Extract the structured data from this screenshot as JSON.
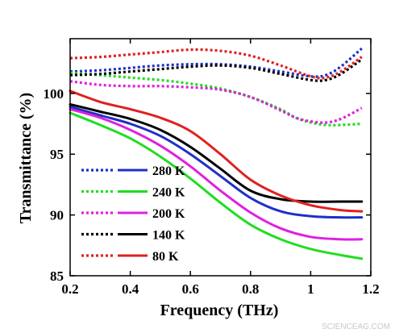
{
  "chart_data": {
    "type": "line",
    "title": "",
    "xlabel": "Frequency (THz)",
    "ylabel": "Transmittance (%)",
    "xlim": [
      0.2,
      1.2
    ],
    "ylim": [
      85,
      104.5
    ],
    "xticks": [
      0.2,
      0.4,
      0.6,
      0.8,
      1,
      1.2
    ],
    "xtick_labels": [
      "0.2",
      "0.4",
      "0.6",
      "0.8",
      "1",
      "1.2"
    ],
    "yticks": [
      85,
      90,
      95,
      100
    ],
    "ytick_labels": [
      "85",
      "90",
      "95",
      "100"
    ],
    "grid": false,
    "legend_position": "lower-left",
    "legend": [
      {
        "label": "280 K",
        "color": "#1f2fc7"
      },
      {
        "label": "240 K",
        "color": "#22dd22"
      },
      {
        "label": "200 K",
        "color": "#e020e0"
      },
      {
        "label": "140 K",
        "color": "#000000"
      },
      {
        "label": "80 K",
        "color": "#e02020"
      }
    ],
    "series": [
      {
        "color": "#1f2fc7",
        "style": "solid",
        "x": [
          0.2,
          0.3,
          0.4,
          0.5,
          0.6,
          0.7,
          0.8,
          0.9,
          1.0,
          1.1,
          1.17
        ],
        "y": [
          98.9,
          98.2,
          97.5,
          96.5,
          95.0,
          93.2,
          91.4,
          90.3,
          89.9,
          89.8,
          89.8
        ]
      },
      {
        "color": "#22dd22",
        "style": "solid",
        "x": [
          0.2,
          0.3,
          0.4,
          0.5,
          0.6,
          0.7,
          0.8,
          0.9,
          1.0,
          1.1,
          1.17
        ],
        "y": [
          98.4,
          97.4,
          96.3,
          94.8,
          93.0,
          91.0,
          89.2,
          88.0,
          87.2,
          86.7,
          86.4
        ]
      },
      {
        "color": "#e020e0",
        "style": "solid",
        "x": [
          0.2,
          0.3,
          0.4,
          0.5,
          0.6,
          0.7,
          0.8,
          0.9,
          1.0,
          1.1,
          1.17
        ],
        "y": [
          98.7,
          98.0,
          97.0,
          95.7,
          94.0,
          92.0,
          90.2,
          88.9,
          88.2,
          88.0,
          88.0
        ]
      },
      {
        "color": "#000000",
        "style": "solid",
        "x": [
          0.2,
          0.3,
          0.4,
          0.5,
          0.6,
          0.7,
          0.8,
          0.9,
          1.0,
          1.1,
          1.17
        ],
        "y": [
          99.1,
          98.5,
          97.9,
          97.0,
          95.6,
          93.8,
          92.0,
          91.3,
          91.1,
          91.1,
          91.1
        ]
      },
      {
        "color": "#e02020",
        "style": "solid",
        "x": [
          0.2,
          0.3,
          0.4,
          0.5,
          0.6,
          0.7,
          0.8,
          0.9,
          1.0,
          1.1,
          1.17
        ],
        "y": [
          100.2,
          99.3,
          98.7,
          98.0,
          96.9,
          95.0,
          92.9,
          91.6,
          90.8,
          90.4,
          90.3
        ]
      },
      {
        "color": "#1f2fc7",
        "style": "dotted",
        "x": [
          0.2,
          0.3,
          0.4,
          0.5,
          0.6,
          0.7,
          0.8,
          0.9,
          1.0,
          1.05,
          1.1,
          1.17
        ],
        "y": [
          101.8,
          101.9,
          102.1,
          102.3,
          102.4,
          102.4,
          102.2,
          101.8,
          101.4,
          101.5,
          102.2,
          103.7
        ]
      },
      {
        "color": "#22dd22",
        "style": "dotted",
        "x": [
          0.2,
          0.3,
          0.4,
          0.5,
          0.6,
          0.7,
          0.8,
          0.9,
          0.95,
          1.0,
          1.05,
          1.1,
          1.17
        ],
        "y": [
          101.7,
          101.5,
          101.3,
          101.1,
          100.8,
          100.4,
          99.7,
          98.7,
          98.0,
          97.6,
          97.4,
          97.4,
          97.5
        ]
      },
      {
        "color": "#e020e0",
        "style": "dotted",
        "x": [
          0.2,
          0.3,
          0.4,
          0.5,
          0.6,
          0.7,
          0.8,
          0.9,
          0.95,
          1.0,
          1.05,
          1.1,
          1.17
        ],
        "y": [
          101.0,
          100.7,
          100.6,
          100.6,
          100.5,
          100.3,
          99.7,
          98.6,
          98.0,
          97.7,
          97.6,
          97.9,
          98.8
        ]
      },
      {
        "color": "#000000",
        "style": "dotted",
        "x": [
          0.2,
          0.3,
          0.4,
          0.5,
          0.6,
          0.7,
          0.8,
          0.9,
          1.0,
          1.05,
          1.1,
          1.17
        ],
        "y": [
          101.5,
          101.6,
          101.8,
          102.0,
          102.2,
          102.3,
          102.1,
          101.6,
          101.1,
          101.1,
          101.6,
          102.8
        ]
      },
      {
        "color": "#e02020",
        "style": "dotted",
        "x": [
          0.2,
          0.3,
          0.4,
          0.5,
          0.6,
          0.7,
          0.8,
          0.9,
          1.0,
          1.05,
          1.1,
          1.17
        ],
        "y": [
          102.9,
          103.0,
          103.2,
          103.4,
          103.6,
          103.5,
          103.1,
          102.3,
          101.4,
          101.3,
          101.8,
          103.0
        ]
      }
    ]
  },
  "watermark": "SCIENCEAG.COM"
}
